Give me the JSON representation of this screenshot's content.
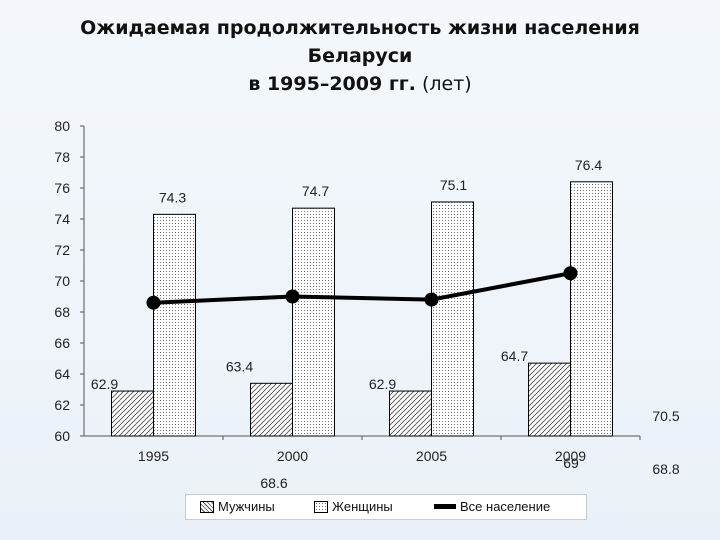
{
  "title": {
    "line1": "Ожидаемая продолжительность жизни населения",
    "line2": "Беларуси",
    "line3_bold": "в 1995–2009 гг.",
    "line3_rest": " (лет)"
  },
  "chart_data": {
    "type": "bar",
    "categories": [
      "1995",
      "2000",
      "2005",
      "2009"
    ],
    "series": [
      {
        "name": "Мужчины",
        "type": "bar",
        "values": [
          62.9,
          63.4,
          62.9,
          64.7
        ],
        "labels": [
          "62.9",
          "63.4",
          "62.9",
          "64.7"
        ],
        "pattern": "hatch"
      },
      {
        "name": "Женщины",
        "type": "bar",
        "values": [
          74.3,
          74.7,
          75.1,
          76.4
        ],
        "labels": [
          "74.3",
          "74.7",
          "75.1",
          "76.4"
        ],
        "pattern": "dots"
      },
      {
        "name": "Все население",
        "type": "line",
        "values": [
          68.6,
          69.0,
          68.8,
          70.5
        ],
        "labels": [
          "68.6",
          "69",
          "68.8",
          "70.5"
        ],
        "color": "#000000"
      }
    ],
    "ylim": [
      60,
      80
    ],
    "yticks": [
      "60",
      "62",
      "64",
      "66",
      "68",
      "70",
      "72",
      "74",
      "76",
      "78",
      "80"
    ],
    "xlabel": "",
    "ylabel": "",
    "grid": false,
    "legend_position": "bottom"
  },
  "legend": {
    "men": "Мужчины",
    "women": "Женщины",
    "all": "Все население"
  }
}
